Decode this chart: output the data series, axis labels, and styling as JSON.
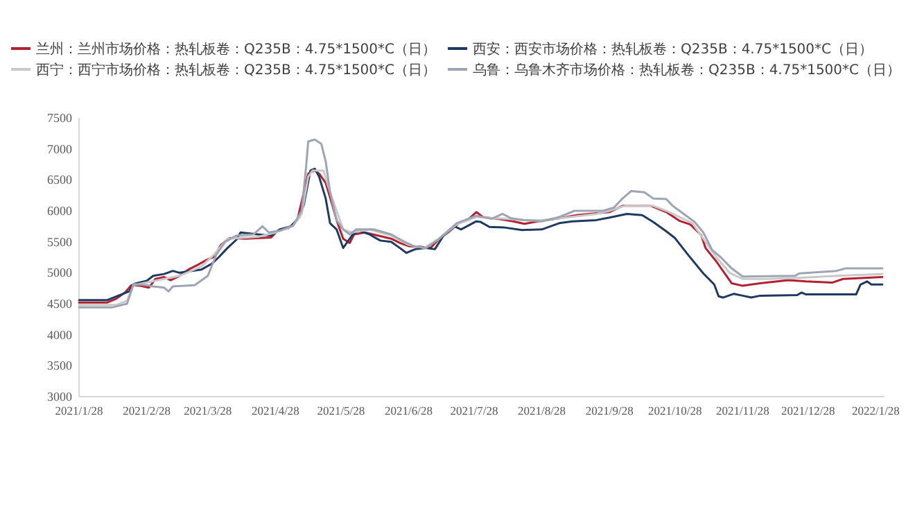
{
  "chart_data": {
    "type": "line",
    "legend": "top",
    "grid": false,
    "line_style": "solid",
    "xlim": [
      "2021-01-28",
      "2022-02-01"
    ],
    "xticks": [
      {
        "value": "2021-01-28",
        "label": "2021/1/28"
      },
      {
        "value": "2021-02-28",
        "label": "2021/2/28"
      },
      {
        "value": "2021-03-28",
        "label": "2021/3/28"
      },
      {
        "value": "2021-04-28",
        "label": "2021/4/28"
      },
      {
        "value": "2021-05-28",
        "label": "2021/5/28"
      },
      {
        "value": "2021-06-28",
        "label": "2021/6/28"
      },
      {
        "value": "2021-07-28",
        "label": "2021/7/28"
      },
      {
        "value": "2021-08-28",
        "label": "2021/8/28"
      },
      {
        "value": "2021-09-28",
        "label": "2021/9/28"
      },
      {
        "value": "2021-10-28",
        "label": "2021/10/28"
      },
      {
        "value": "2021-11-28",
        "label": "2021/11/28"
      },
      {
        "value": "2021-12-28",
        "label": "2021/12/28"
      },
      {
        "value": "2022-01-28",
        "label": "2022/1/28"
      }
    ],
    "ylim": [
      3000,
      7500
    ],
    "yticks": [
      3000,
      3500,
      4000,
      4500,
      5000,
      5500,
      6000,
      6500,
      7000,
      7500
    ],
    "series": [
      {
        "name": "兰州：兰州市场价格：热轧板卷：Q235B：4.75*1500*C（日）",
        "color": "#b3202f",
        "x": [
          "2021-01-28",
          "2021-02-10",
          "2021-02-14",
          "2021-02-18",
          "2021-02-21",
          "2021-02-25",
          "2021-03-01",
          "2021-03-04",
          "2021-03-08",
          "2021-03-11",
          "2021-03-15",
          "2021-03-19",
          "2021-03-23",
          "2021-03-27",
          "2021-03-31",
          "2021-04-03",
          "2021-04-07",
          "2021-04-14",
          "2021-04-21",
          "2021-04-26",
          "2021-04-29",
          "2021-05-04",
          "2021-05-08",
          "2021-05-11",
          "2021-05-13",
          "2021-05-16",
          "2021-05-18",
          "2021-05-21",
          "2021-05-24",
          "2021-05-26",
          "2021-05-29",
          "2021-06-01",
          "2021-06-03",
          "2021-06-08",
          "2021-06-14",
          "2021-06-20",
          "2021-06-24",
          "2021-06-28",
          "2021-07-03",
          "2021-07-08",
          "2021-07-12",
          "2021-07-16",
          "2021-07-21",
          "2021-07-25",
          "2021-07-29",
          "2021-08-01",
          "2021-08-08",
          "2021-08-15",
          "2021-08-20",
          "2021-08-28",
          "2021-09-05",
          "2021-09-13",
          "2021-09-28",
          "2021-10-04",
          "2021-10-17",
          "2021-10-24",
          "2021-10-30",
          "2021-11-04",
          "2021-11-09",
          "2021-11-11",
          "2021-11-16",
          "2021-11-23",
          "2021-11-28",
          "2021-12-06",
          "2021-12-19",
          "2021-12-27",
          "2022-01-08",
          "2022-01-13",
          "2022-01-31"
        ],
        "values": [
          4520,
          4520,
          4580,
          4680,
          4800,
          4790,
          4760,
          4900,
          4930,
          4880,
          4950,
          5050,
          5120,
          5200,
          5260,
          5450,
          5560,
          5550,
          5560,
          5570,
          5680,
          5720,
          5850,
          6300,
          6600,
          6650,
          6600,
          6450,
          6100,
          5850,
          5550,
          5480,
          5620,
          5650,
          5600,
          5550,
          5480,
          5430,
          5420,
          5400,
          5550,
          5650,
          5800,
          5850,
          5980,
          5900,
          5870,
          5830,
          5790,
          5840,
          5880,
          5930,
          5980,
          6080,
          6080,
          5980,
          5840,
          5780,
          5610,
          5400,
          5180,
          4830,
          4790,
          4830,
          4880,
          4860,
          4840,
          4900,
          4930
        ]
      },
      {
        "name": "西安：西安市场价格：热轧板卷：Q235B：4.75*1500*C（日）",
        "color": "#1f3a60",
        "x": [
          "2021-01-28",
          "2021-02-10",
          "2021-02-20",
          "2021-02-22",
          "2021-02-28",
          "2021-03-03",
          "2021-03-08",
          "2021-03-12",
          "2021-03-15",
          "2021-03-25",
          "2021-03-30",
          "2021-04-02",
          "2021-04-06",
          "2021-04-10",
          "2021-04-12",
          "2021-04-20",
          "2021-04-26",
          "2021-04-30",
          "2021-05-05",
          "2021-05-09",
          "2021-05-11",
          "2021-05-14",
          "2021-05-16",
          "2021-05-18",
          "2021-05-21",
          "2021-05-23",
          "2021-05-26",
          "2021-05-29",
          "2021-06-02",
          "2021-06-05",
          "2021-06-10",
          "2021-06-15",
          "2021-06-20",
          "2021-06-24",
          "2021-06-27",
          "2021-07-01",
          "2021-07-06",
          "2021-07-10",
          "2021-07-14",
          "2021-07-19",
          "2021-07-22",
          "2021-07-29",
          "2021-07-31",
          "2021-08-04",
          "2021-08-11",
          "2021-08-19",
          "2021-08-28",
          "2021-09-05",
          "2021-09-11",
          "2021-09-22",
          "2021-09-28",
          "2021-10-06",
          "2021-10-13",
          "2021-10-18",
          "2021-10-24",
          "2021-10-28",
          "2021-11-03",
          "2021-11-10",
          "2021-11-15",
          "2021-11-17",
          "2021-11-19",
          "2021-11-24",
          "2021-11-28",
          "2021-12-02",
          "2021-12-06",
          "2021-12-23",
          "2021-12-25",
          "2021-12-27",
          "2022-01-19",
          "2022-01-21",
          "2022-01-24",
          "2022-01-26",
          "2022-01-31"
        ],
        "values": [
          4560,
          4560,
          4700,
          4820,
          4870,
          4950,
          4980,
          5030,
          5000,
          5050,
          5150,
          5250,
          5400,
          5530,
          5650,
          5620,
          5600,
          5700,
          5750,
          5900,
          6100,
          6650,
          6680,
          6550,
          6200,
          5800,
          5700,
          5400,
          5600,
          5680,
          5620,
          5520,
          5500,
          5400,
          5320,
          5380,
          5400,
          5380,
          5600,
          5750,
          5700,
          5830,
          5820,
          5740,
          5730,
          5690,
          5700,
          5800,
          5830,
          5850,
          5890,
          5950,
          5930,
          5820,
          5670,
          5560,
          5290,
          4990,
          4810,
          4620,
          4600,
          4660,
          4630,
          4600,
          4630,
          4640,
          4680,
          4650,
          4650,
          4810,
          4860,
          4810,
          4810
        ]
      },
      {
        "name": "西宁：西宁市场价格：热轧板卷：Q235B：4.75*1500*C（日）",
        "color": "#c9c9c9",
        "x": [
          "2021-01-28",
          "2021-02-14",
          "2021-02-19",
          "2021-02-22",
          "2021-03-01",
          "2021-03-08",
          "2021-03-15",
          "2021-03-25",
          "2021-03-31",
          "2021-04-06",
          "2021-04-20",
          "2021-04-28",
          "2021-05-06",
          "2021-05-10",
          "2021-05-13",
          "2021-05-15",
          "2021-05-20",
          "2021-05-23",
          "2021-05-26",
          "2021-05-29",
          "2021-06-02",
          "2021-06-10",
          "2021-06-20",
          "2021-06-28",
          "2021-07-05",
          "2021-07-12",
          "2021-07-20",
          "2021-07-29",
          "2021-08-08",
          "2021-08-20",
          "2021-08-28",
          "2021-09-10",
          "2021-09-22",
          "2021-09-28",
          "2021-10-05",
          "2021-10-18",
          "2021-10-24",
          "2021-10-30",
          "2021-11-05",
          "2021-11-10",
          "2021-11-16",
          "2021-11-22",
          "2021-11-28",
          "2021-12-10",
          "2021-12-25",
          "2022-01-10",
          "2022-01-31"
        ],
        "values": [
          4480,
          4480,
          4550,
          4800,
          4850,
          4900,
          4950,
          5100,
          5300,
          5550,
          5580,
          5650,
          5750,
          5950,
          6550,
          6650,
          6650,
          6300,
          6000,
          5700,
          5650,
          5700,
          5600,
          5450,
          5400,
          5550,
          5780,
          5900,
          5880,
          5850,
          5850,
          5900,
          5950,
          6000,
          6080,
          6080,
          6000,
          5900,
          5800,
          5550,
          5250,
          5000,
          4900,
          4900,
          4920,
          4950,
          4980
        ]
      },
      {
        "name": "乌鲁：乌鲁木齐市场价格：热轧板卷：Q235B：4.75*1500*C（日）",
        "color": "#9da5b4",
        "x": [
          "2021-01-28",
          "2021-02-12",
          "2021-02-19",
          "2021-02-22",
          "2021-02-28",
          "2021-03-03",
          "2021-03-08",
          "2021-03-10",
          "2021-03-12",
          "2021-03-22",
          "2021-03-28",
          "2021-04-01",
          "2021-04-05",
          "2021-04-10",
          "2021-04-18",
          "2021-04-22",
          "2021-04-25",
          "2021-04-30",
          "2021-05-06",
          "2021-05-10",
          "2021-05-12",
          "2021-05-13",
          "2021-05-16",
          "2021-05-19",
          "2021-05-21",
          "2021-05-23",
          "2021-05-26",
          "2021-05-29",
          "2021-06-01",
          "2021-06-04",
          "2021-06-12",
          "2021-06-20",
          "2021-06-26",
          "2021-07-01",
          "2021-07-06",
          "2021-07-12",
          "2021-07-20",
          "2021-07-29",
          "2021-08-05",
          "2021-08-10",
          "2021-08-14",
          "2021-08-20",
          "2021-08-28",
          "2021-09-05",
          "2021-09-12",
          "2021-09-25",
          "2021-09-30",
          "2021-10-04",
          "2021-10-08",
          "2021-10-14",
          "2021-10-18",
          "2021-10-24",
          "2021-10-27",
          "2021-11-01",
          "2021-11-06",
          "2021-11-10",
          "2021-11-14",
          "2021-11-18",
          "2021-11-23",
          "2021-11-28",
          "2021-12-22",
          "2021-12-24",
          "2022-01-10",
          "2022-01-14",
          "2022-01-31"
        ],
        "values": [
          4440,
          4440,
          4500,
          4820,
          4800,
          4780,
          4760,
          4700,
          4780,
          4800,
          4950,
          5300,
          5500,
          5600,
          5620,
          5750,
          5650,
          5680,
          5760,
          6000,
          6700,
          7120,
          7150,
          7080,
          6800,
          6300,
          5850,
          5700,
          5620,
          5700,
          5700,
          5620,
          5500,
          5420,
          5400,
          5550,
          5800,
          5920,
          5870,
          5950,
          5880,
          5850,
          5830,
          5900,
          6000,
          6000,
          6050,
          6200,
          6320,
          6300,
          6200,
          6190,
          6080,
          5950,
          5820,
          5650,
          5370,
          5250,
          5070,
          4940,
          4950,
          4990,
          5030,
          5070,
          5070
        ]
      }
    ]
  }
}
